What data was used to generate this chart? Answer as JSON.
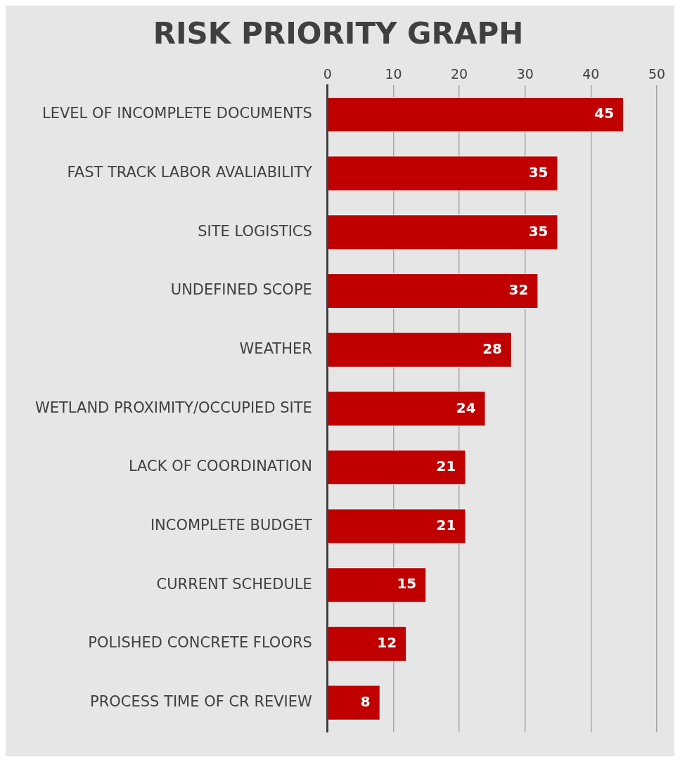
{
  "chart_data": {
    "type": "bar",
    "orientation": "horizontal",
    "title": "RISK PRIORITY GRAPH",
    "categories": [
      "LEVEL OF INCOMPLETE DOCUMENTS",
      "FAST TRACK LABOR AVALIABILITY",
      "SITE LOGISTICS",
      "UNDEFINED SCOPE",
      "WEATHER",
      "WETLAND PROXIMITY/OCCUPIED SITE",
      "LACK OF COORDINATION",
      "INCOMPLETE BUDGET",
      "CURRENT SCHEDULE",
      "POLISHED CONCRETE FLOORS",
      "PROCESS TIME OF CR REVIEW"
    ],
    "values": [
      45,
      35,
      35,
      32,
      28,
      24,
      21,
      21,
      15,
      12,
      8
    ],
    "color": "#c00000",
    "xlim": [
      0,
      50
    ],
    "xticks": [
      0,
      10,
      20,
      30,
      40,
      50
    ],
    "grid": "x",
    "data_labels": true
  }
}
